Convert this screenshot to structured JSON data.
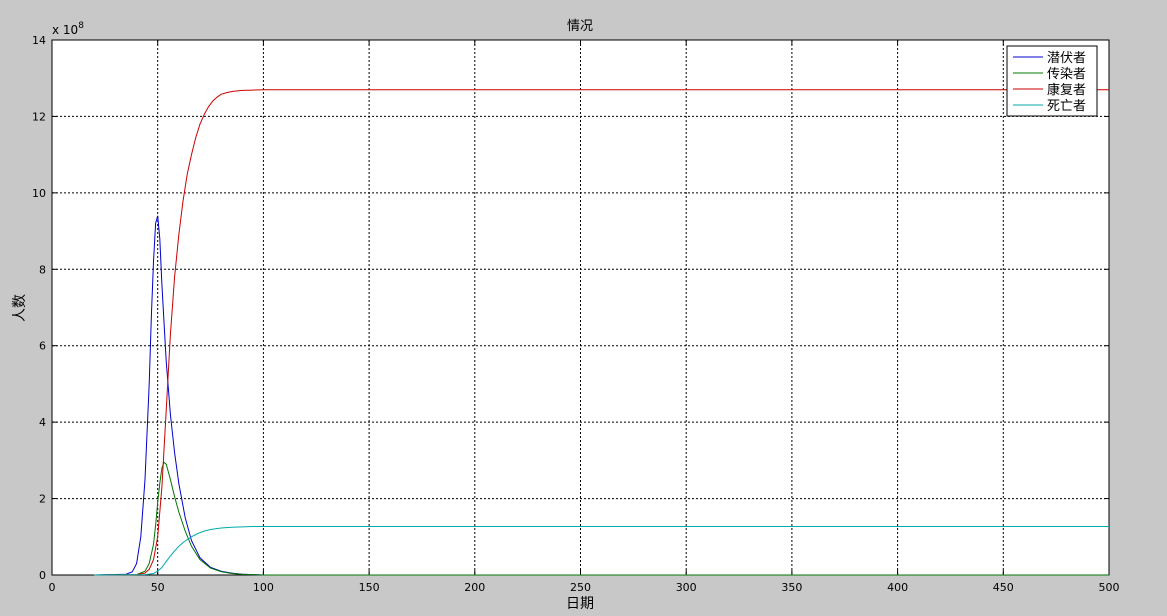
{
  "window": {
    "background": "#c8c8c8"
  },
  "chart_data": {
    "type": "line",
    "title": "情况",
    "xlabel": "日期",
    "ylabel": "人数",
    "y_exponent_label": "x 10",
    "y_exponent_power": "8",
    "xlim": [
      0,
      500
    ],
    "ylim": [
      0,
      14
    ],
    "x_ticks": [
      0,
      50,
      100,
      150,
      200,
      250,
      300,
      350,
      400,
      450,
      500
    ],
    "y_ticks": [
      0,
      2,
      4,
      6,
      8,
      10,
      12,
      14
    ],
    "x_tick_labels": [
      "0",
      "50",
      "100",
      "150",
      "200",
      "250",
      "300",
      "350",
      "400",
      "450",
      "500"
    ],
    "y_tick_labels": [
      "0",
      "2",
      "4",
      "6",
      "8",
      "10",
      "12",
      "14"
    ],
    "grid": true,
    "grid_style": "dashed",
    "legend_position": "top-right",
    "series": [
      {
        "name": "潜伏者",
        "color": "#0000cc",
        "x": [
          20,
          35,
          38,
          40,
          42,
          44,
          46,
          47,
          48,
          49,
          50,
          51,
          52,
          54,
          56,
          58,
          60,
          63,
          66,
          70,
          75,
          80,
          85,
          90,
          95,
          100,
          150,
          200,
          250,
          300,
          320
        ],
        "y": [
          0,
          0.02,
          0.08,
          0.3,
          1.0,
          2.5,
          5.0,
          6.8,
          8.2,
          9.2,
          9.4,
          8.8,
          7.6,
          5.6,
          4.2,
          3.2,
          2.4,
          1.5,
          0.9,
          0.45,
          0.2,
          0.1,
          0.05,
          0.02,
          0.01,
          0.0,
          0.0,
          0.0,
          0.0,
          0.0,
          0.0
        ]
      },
      {
        "name": "传染者",
        "color": "#007700",
        "x": [
          20,
          40,
          44,
          46,
          48,
          49,
          50,
          51,
          52,
          53,
          54,
          55,
          56,
          58,
          60,
          63,
          66,
          70,
          75,
          80,
          85,
          90,
          95,
          100,
          150,
          200,
          250,
          300,
          350,
          400,
          450,
          500
        ],
        "y": [
          0,
          0.01,
          0.1,
          0.3,
          0.8,
          1.3,
          1.9,
          2.4,
          2.8,
          2.95,
          2.9,
          2.7,
          2.5,
          2.05,
          1.65,
          1.15,
          0.75,
          0.4,
          0.18,
          0.09,
          0.04,
          0.02,
          0.01,
          0.0,
          0.0,
          0.0,
          0.0,
          0.0,
          0.0,
          0.0,
          0.0,
          0.0
        ]
      },
      {
        "name": "康复者",
        "color": "#cc0000",
        "x": [
          20,
          40,
          44,
          46,
          48,
          50,
          52,
          54,
          56,
          58,
          60,
          62,
          64,
          66,
          68,
          70,
          72,
          74,
          76,
          78,
          80,
          83,
          86,
          90,
          95,
          100,
          110,
          150,
          200,
          300,
          400,
          500
        ],
        "y": [
          0,
          0.01,
          0.05,
          0.15,
          0.4,
          1.0,
          2.3,
          4.3,
          6.3,
          7.8,
          8.9,
          9.8,
          10.5,
          11.0,
          11.45,
          11.8,
          12.05,
          12.25,
          12.4,
          12.5,
          12.58,
          12.63,
          12.66,
          12.68,
          12.69,
          12.7,
          12.7,
          12.7,
          12.7,
          12.7,
          12.7,
          12.7
        ]
      },
      {
        "name": "死亡者",
        "color": "#00aaaa",
        "x": [
          20,
          44,
          48,
          50,
          52,
          54,
          56,
          58,
          60,
          62,
          64,
          66,
          68,
          70,
          72,
          75,
          80,
          85,
          90,
          95,
          100,
          150,
          200,
          300,
          400,
          500
        ],
        "y": [
          0,
          0.01,
          0.04,
          0.1,
          0.2,
          0.35,
          0.5,
          0.63,
          0.75,
          0.85,
          0.93,
          1.0,
          1.06,
          1.11,
          1.15,
          1.19,
          1.23,
          1.25,
          1.26,
          1.27,
          1.27,
          1.27,
          1.27,
          1.27,
          1.27,
          1.27
        ]
      }
    ]
  }
}
